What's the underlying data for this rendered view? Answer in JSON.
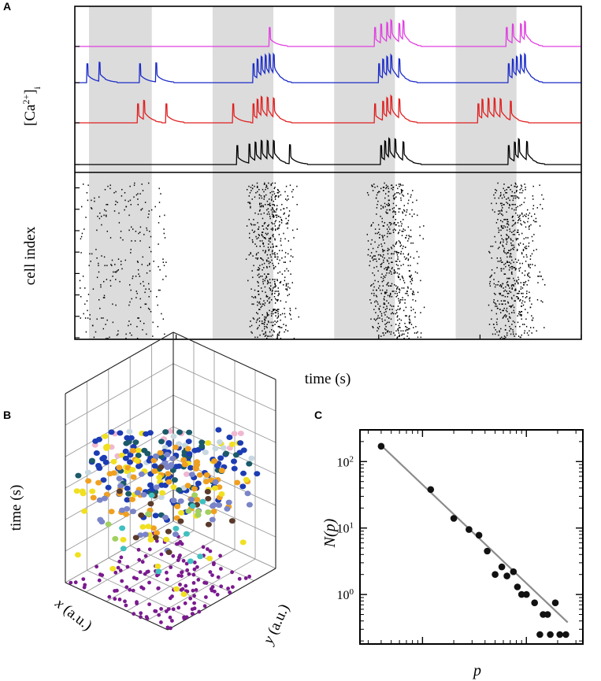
{
  "panels": {
    "a_label": "A",
    "b_label": "B",
    "c_label": "C"
  },
  "chart_data": [
    {
      "panel": "A",
      "type": "line",
      "subtype": "calcium-traces",
      "ylabel_base": "[Ca",
      "ylabel_sup": "2+",
      "ylabel_close": "]",
      "ylabel_sub": "i",
      "xlim": [
        0,
        2500
      ],
      "stimulation_bands_s": [
        [
          70,
          380
        ],
        [
          680,
          980
        ],
        [
          1280,
          1580
        ],
        [
          1880,
          2180
        ]
      ],
      "band_color": "#dcdcdc",
      "series": [
        {
          "color": "#e040e0",
          "spikes_s": [
            960,
            1480,
            1510,
            1540,
            1560,
            1600,
            1620,
            2130,
            2160,
            2200,
            2220
          ]
        },
        {
          "color": "#1c2cc8",
          "spikes_s": [
            60,
            120,
            320,
            400,
            880,
            900,
            920,
            940,
            960,
            980,
            1500,
            1520,
            1540,
            1560,
            1600,
            2140,
            2160,
            2180,
            2200,
            2220
          ]
        },
        {
          "color": "#e02020",
          "spikes_s": [
            310,
            340,
            450,
            780,
            880,
            900,
            920,
            950,
            980,
            1480,
            1520,
            1540,
            1560,
            1600,
            1990,
            2010,
            2040,
            2070,
            2100,
            2150
          ]
        },
        {
          "color": "#000000",
          "spikes_s": [
            800,
            860,
            890,
            920,
            950,
            980,
            1060,
            1510,
            1530,
            1550,
            1580,
            1620,
            2140,
            2170,
            2190,
            2230
          ]
        }
      ]
    },
    {
      "panel": "A-raster",
      "type": "scatter",
      "subtype": "raster",
      "xlabel": "time (s)",
      "ylabel": "cell index",
      "xlim": [
        0,
        2500
      ],
      "ylim": [
        0,
        150
      ],
      "xticks": [
        500,
        1000,
        1500,
        2000,
        2500
      ],
      "yticks": [
        0,
        20,
        40,
        60,
        80,
        100,
        120,
        140
      ],
      "activity_windows_s": [
        [
          20,
          450
        ],
        [
          870,
          1080
        ],
        [
          1470,
          1700
        ],
        [
          2070,
          2290
        ]
      ],
      "dot_color": "#000000"
    },
    {
      "panel": "B",
      "type": "scatter",
      "subtype": "3d-scatter",
      "xlabel": "x",
      "xlabel_unit": " (a.u.)",
      "ylabel": "y",
      "ylabel_unit": " (a.u.)",
      "zlabel": "time (s)",
      "xticks": [
        "0.0",
        "0.2",
        "0.4",
        "0.6",
        "0.8",
        "1.0"
      ],
      "yticks": [
        "0.0",
        "0.2",
        "0.4",
        "0.6",
        "0.8",
        "1.0"
      ],
      "zticks": [
        "2050",
        "2100",
        "2150",
        "2200",
        "2250",
        "2300"
      ],
      "zlim": [
        2030,
        2300
      ],
      "floor_projection_color": "#7a1a8e",
      "cluster_colors": [
        "#1c3cb4",
        "#f0a020",
        "#f0e020",
        "#1a5a6a",
        "#7a84c8",
        "#a0d060",
        "#f0b8d0",
        "#5a3a2a",
        "#40c0c0",
        "#c8d8e0"
      ]
    },
    {
      "panel": "C",
      "type": "scatter",
      "subtype": "log-log",
      "xlabel": "p",
      "ylabel": "N(p)",
      "xscale": "log",
      "yscale": "log",
      "xlim": [
        25,
        3500
      ],
      "ylim": [
        0.18,
        300
      ],
      "xticks": [
        100,
        1000
      ],
      "yticks": [
        1,
        10,
        100
      ],
      "x": [
        40,
        120,
        200,
        280,
        350,
        420,
        500,
        580,
        650,
        750,
        820,
        900,
        1000,
        1200,
        1350,
        1450,
        1600,
        1700,
        1900,
        2100,
        2400
      ],
      "y": [
        170,
        38,
        14,
        9.5,
        7.8,
        4.5,
        2.0,
        2.6,
        1.9,
        2.2,
        1.3,
        1.0,
        1.0,
        0.75,
        0.25,
        0.5,
        0.5,
        0.25,
        0.75,
        0.25,
        0.25
      ],
      "fit": {
        "x": [
          40,
          2500
        ],
        "y": [
          175,
          0.38
        ]
      },
      "point_color": "#111111",
      "fit_color": "#8c8c8c"
    }
  ]
}
